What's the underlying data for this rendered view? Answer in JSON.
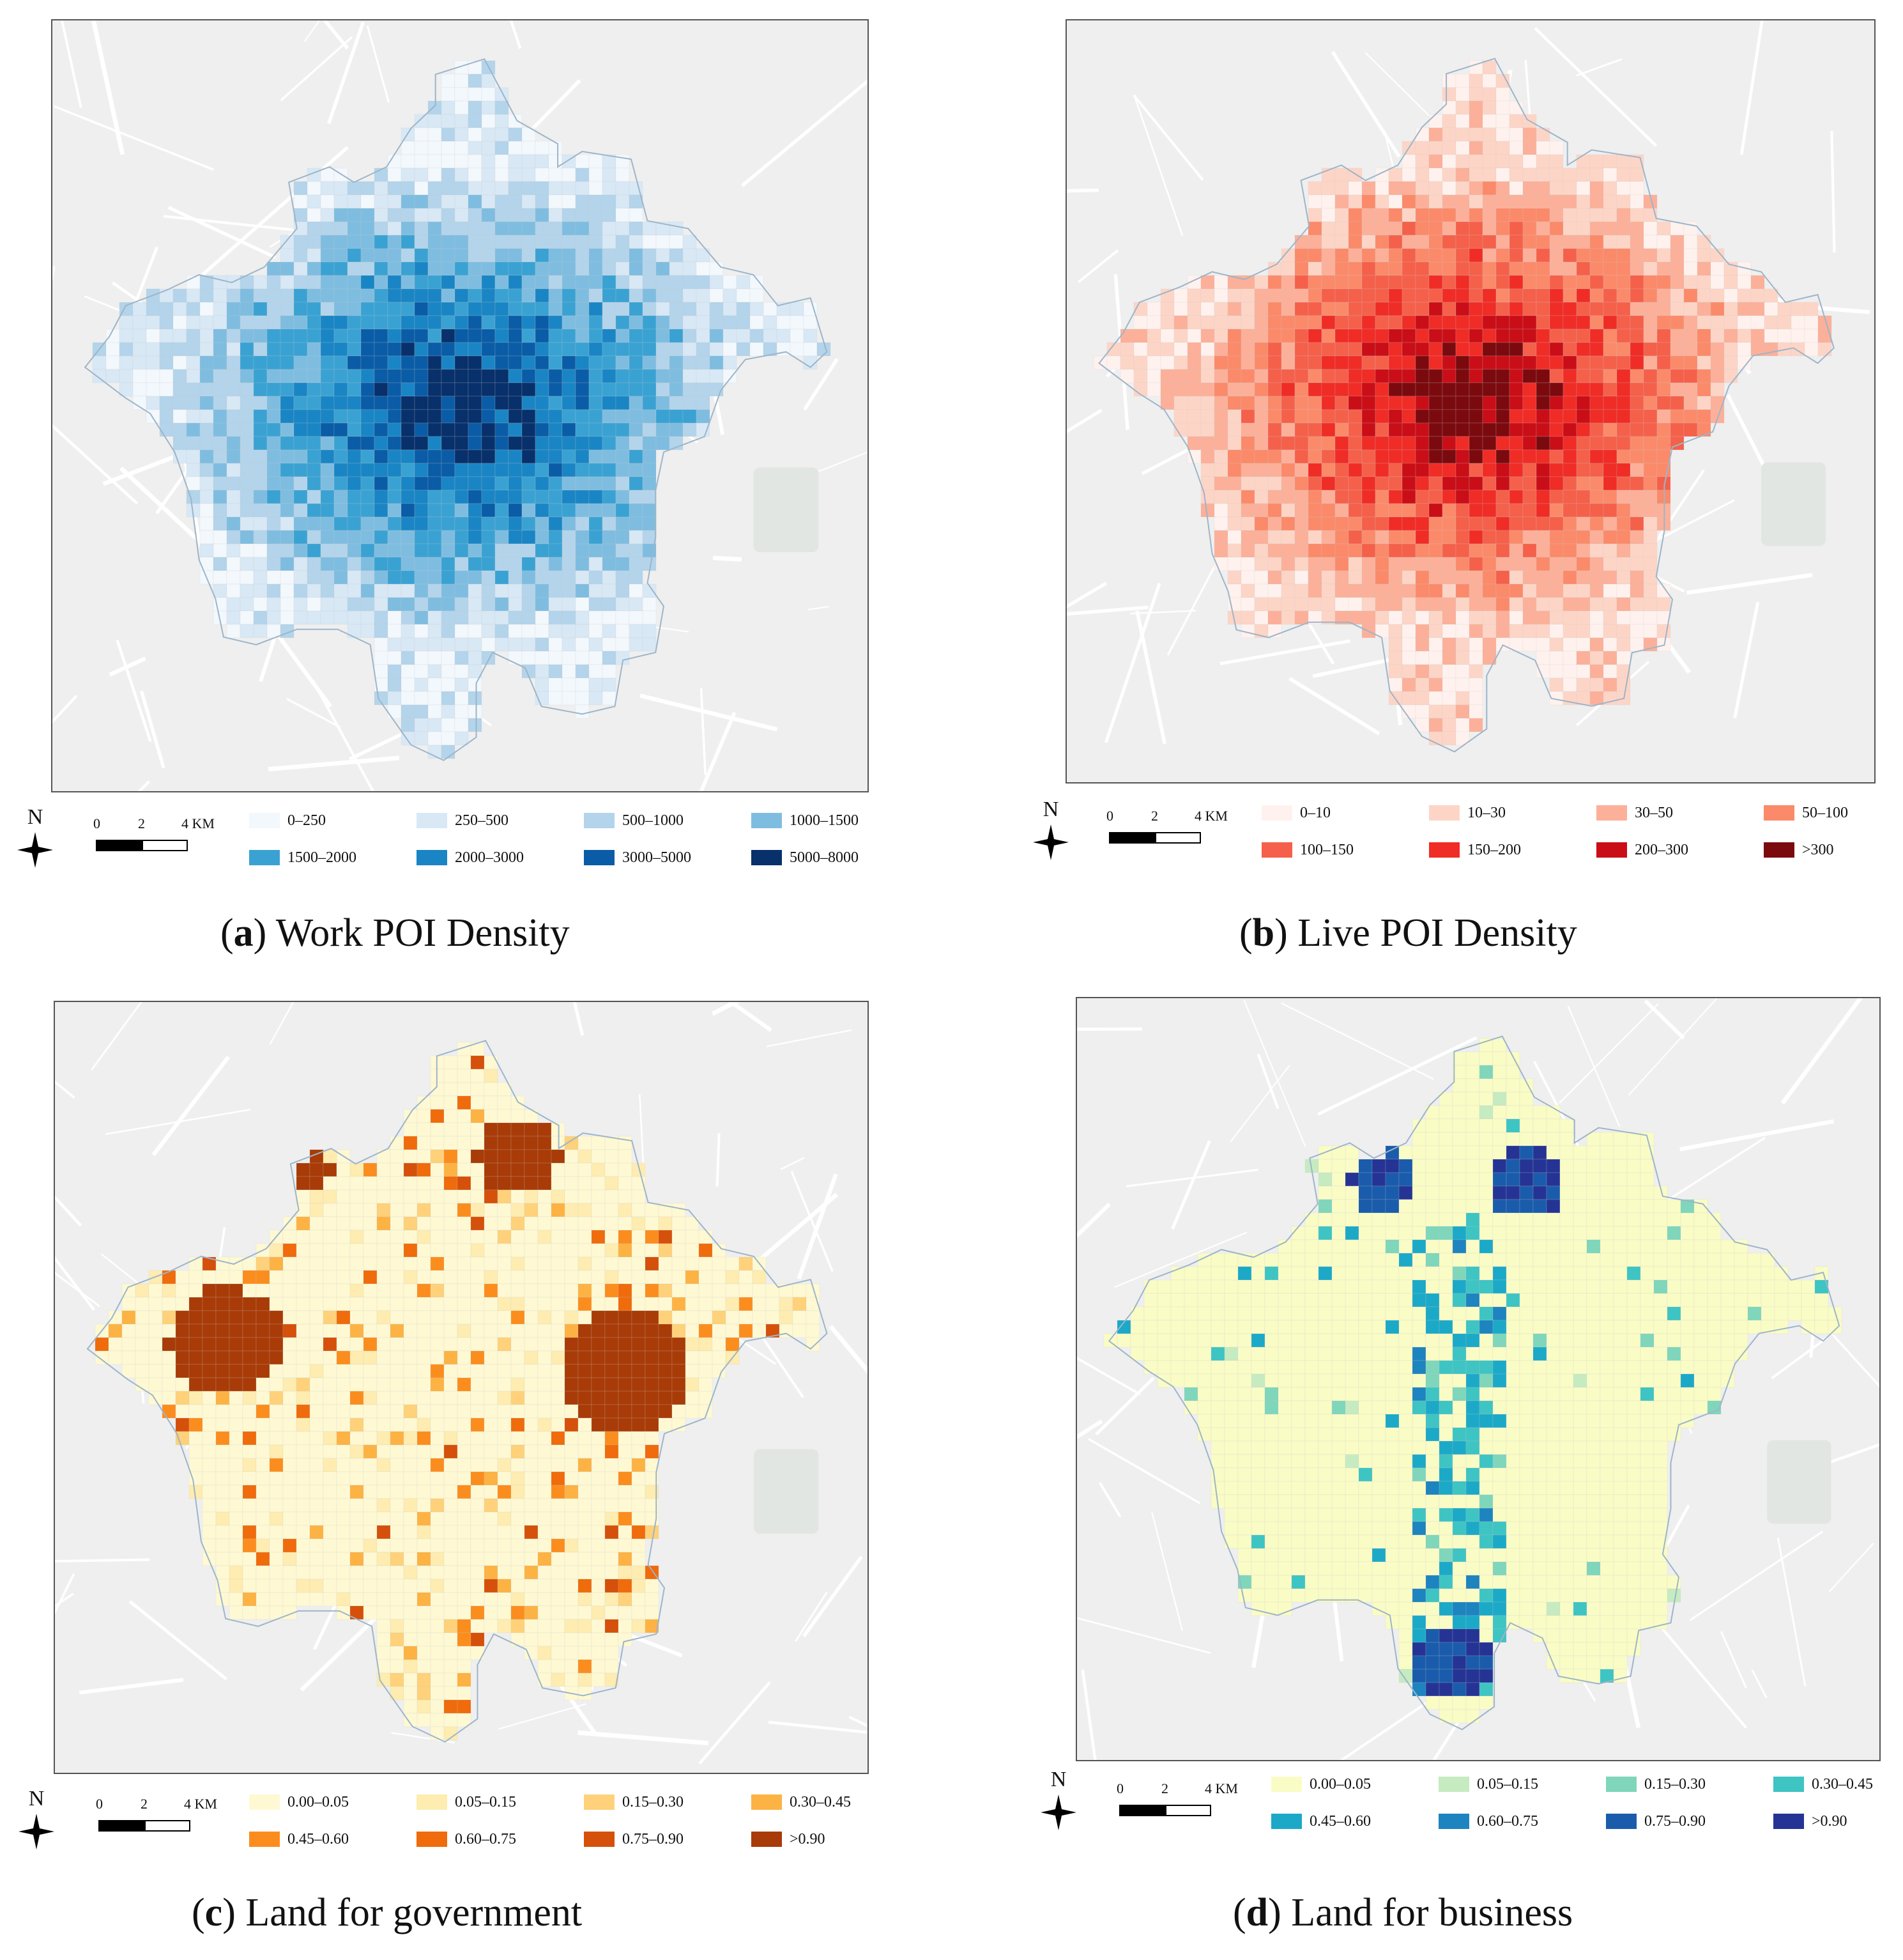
{
  "panels": [
    {
      "id": "a",
      "caption_letter": "a",
      "caption_text": "Work POI Density",
      "legend": [
        {
          "label": "0–250",
          "color": "#f3f8fd"
        },
        {
          "label": "250–500",
          "color": "#d8e8f5"
        },
        {
          "label": "500–1000",
          "color": "#b3d4ea"
        },
        {
          "label": "1000–1500",
          "color": "#7fbde0"
        },
        {
          "label": "1500–2000",
          "color": "#3aa2d3"
        },
        {
          "label": "2000–3000",
          "color": "#1a85c4"
        },
        {
          "label": "3000–5000",
          "color": "#0a5ca6"
        },
        {
          "label": "5000–8000",
          "color": "#08306b"
        }
      ]
    },
    {
      "id": "b",
      "caption_letter": "b",
      "caption_text": "Live POI Density",
      "legend": [
        {
          "label": "0–10",
          "color": "#fff2ee"
        },
        {
          "label": "10–30",
          "color": "#fdd5c7"
        },
        {
          "label": "30–50",
          "color": "#fcb099"
        },
        {
          "label": "50–100",
          "color": "#fb8a6a"
        },
        {
          "label": "100–150",
          "color": "#f5604b"
        },
        {
          "label": "150–200",
          "color": "#f02c26"
        },
        {
          "label": "200–300",
          "color": "#c90e18"
        },
        {
          "label": ">300",
          "color": "#7b0a0f"
        }
      ]
    },
    {
      "id": "c",
      "caption_letter": "c",
      "caption_text": "Land for government",
      "legend": [
        {
          "label": "0.00–0.05",
          "color": "#fef9d3"
        },
        {
          "label": "0.05–0.15",
          "color": "#feecb0"
        },
        {
          "label": "0.15–0.30",
          "color": "#fed17a"
        },
        {
          "label": "0.30–0.45",
          "color": "#fdb244"
        },
        {
          "label": "0.45–0.60",
          "color": "#fb8d1e"
        },
        {
          "label": "0.60–0.75",
          "color": "#ef6b0c"
        },
        {
          "label": "0.75–0.90",
          "color": "#d5500a"
        },
        {
          "label": ">0.90",
          "color": "#a83b07"
        }
      ]
    },
    {
      "id": "d",
      "caption_letter": "d",
      "caption_text": "Land for business",
      "legend": [
        {
          "label": "0.00–0.05",
          "color": "#fafcc6"
        },
        {
          "label": "0.05–0.15",
          "color": "#c6ebc1"
        },
        {
          "label": "0.15–0.30",
          "color": "#7fd6bb"
        },
        {
          "label": "0.30–0.45",
          "color": "#3ec4c3"
        },
        {
          "label": "0.45–0.60",
          "color": "#1ca9c8"
        },
        {
          "label": "0.60–0.75",
          "color": "#1d84bf"
        },
        {
          "label": "0.75–0.90",
          "color": "#1a5cab"
        },
        {
          "label": ">0.90",
          "color": "#253494"
        }
      ]
    }
  ],
  "compass_letter": "N",
  "scale": {
    "tick0": "0",
    "tick1": "2",
    "tick2": "4 KM"
  }
}
